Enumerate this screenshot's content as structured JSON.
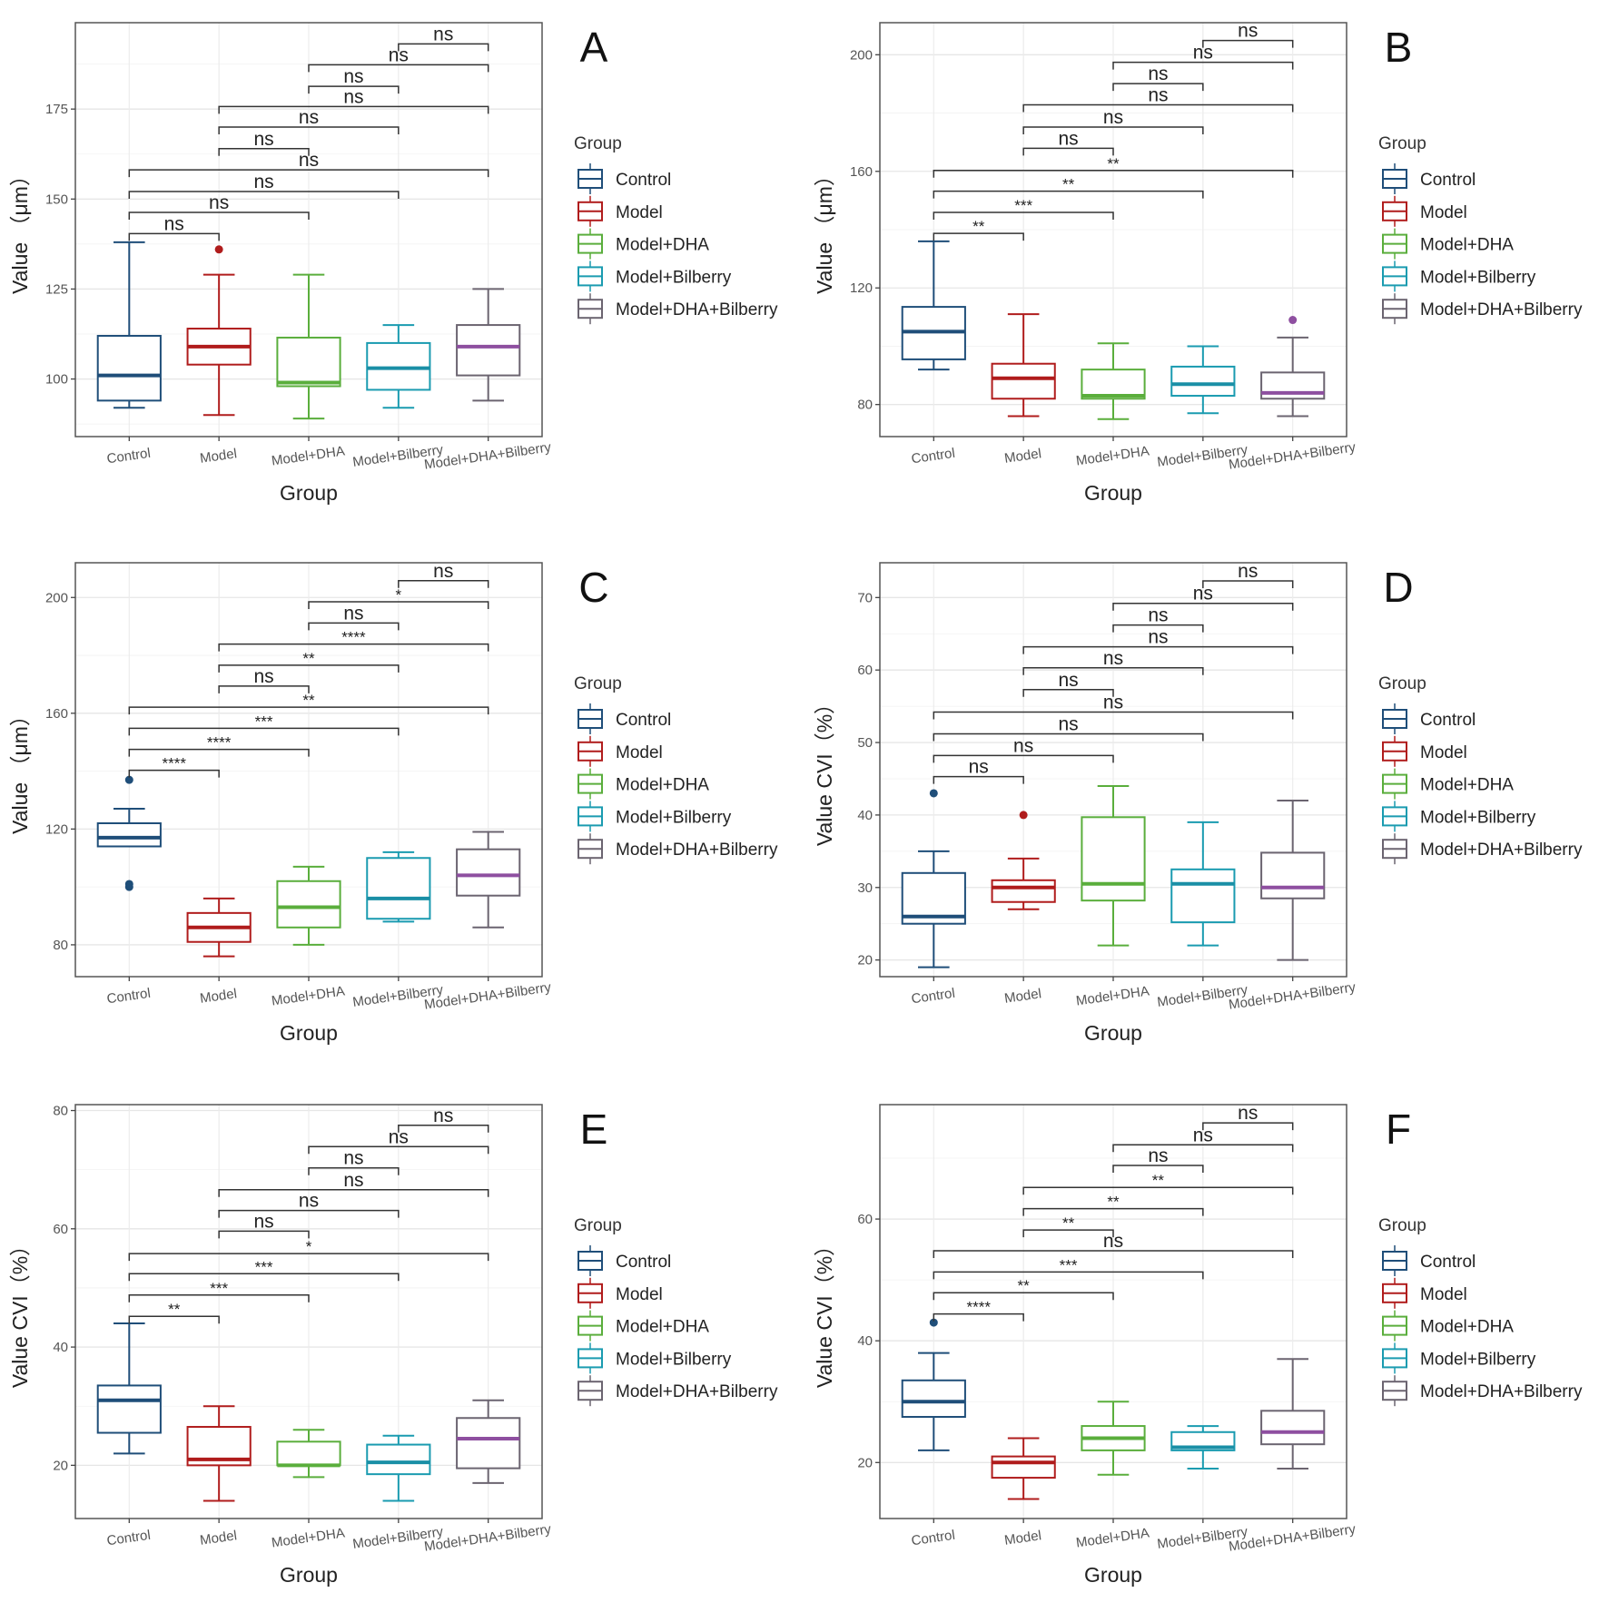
{
  "groups": [
    "Control",
    "Model",
    "Model+DHA",
    "Model+Bilberry",
    "Model+DHA+Bilberry"
  ],
  "colors": {
    "Control": "#1f4e79",
    "Model": "#b01c1c",
    "Model+DHA": "#5aae3c",
    "Model+Bilberry": "#1a9bb0",
    "Model+DHA+Bilberry": "#6b6470"
  },
  "median_colors": {
    "Control": "#1f4e79",
    "Model": "#b01c1c",
    "Model+DHA": "#5aae3c",
    "Model+Bilberry": "#1a8fa6",
    "Model+DHA+Bilberry": "#8e4fa0"
  },
  "legend_title": "Group",
  "comparisons": [
    [
      "Control",
      "Model"
    ],
    [
      "Control",
      "Model+DHA"
    ],
    [
      "Control",
      "Model+Bilberry"
    ],
    [
      "Control",
      "Model+DHA+Bilberry"
    ],
    [
      "Model",
      "Model+DHA"
    ],
    [
      "Model",
      "Model+Bilberry"
    ],
    [
      "Model",
      "Model+DHA+Bilberry"
    ],
    [
      "Model+DHA",
      "Model+Bilberry"
    ],
    [
      "Model+DHA",
      "Model+DHA+Bilberry"
    ],
    [
      "Model+Bilberry",
      "Model+DHA+Bilberry"
    ]
  ],
  "chart_data": [
    {
      "panel": "A",
      "type": "box",
      "xlabel": "Group",
      "ylabel": "Value （μm）",
      "ylim": [
        84,
        199
      ],
      "yticks": [
        100,
        125,
        150,
        175
      ],
      "boxes": [
        [
          92,
          94,
          101,
          112,
          138,
          []
        ],
        [
          90,
          104,
          109,
          114,
          129,
          [
            136
          ]
        ],
        [
          89,
          98,
          99,
          111.5,
          129,
          []
        ],
        [
          92,
          97,
          103,
          110,
          115,
          []
        ],
        [
          94,
          101,
          109,
          115,
          125,
          []
        ]
      ],
      "bracket_y": [
        140.4,
        146.3,
        152.1,
        158.1,
        164,
        170,
        175.7,
        181.3,
        187.3,
        193.1
      ],
      "labels": [
        "ns",
        "ns",
        "ns",
        "ns",
        "ns",
        "ns",
        "ns",
        "ns",
        "ns",
        "ns"
      ]
    },
    {
      "panel": "B",
      "type": "box",
      "xlabel": "Group",
      "ylabel": "Value （μm）",
      "ylim": [
        69,
        211
      ],
      "yticks": [
        80,
        120,
        160,
        200
      ],
      "boxes": [
        [
          92,
          95.5,
          105,
          113.5,
          136,
          []
        ],
        [
          76,
          82,
          89,
          94,
          111,
          []
        ],
        [
          75,
          82,
          83,
          92,
          101,
          []
        ],
        [
          77,
          83,
          87,
          93,
          100,
          []
        ],
        [
          76,
          82,
          84,
          91,
          103,
          [
            109
          ]
        ]
      ],
      "bracket_y": [
        138.7,
        145.9,
        153.2,
        160.3,
        167.9,
        175.2,
        182.8,
        190.1,
        197.4,
        204.9
      ],
      "labels": [
        "**",
        "***",
        "**",
        "**",
        "ns",
        "ns",
        "ns",
        "ns",
        "ns",
        "ns"
      ]
    },
    {
      "panel": "C",
      "type": "box",
      "xlabel": "Group",
      "ylabel": "Value （μm）",
      "ylim": [
        69,
        212
      ],
      "yticks": [
        80,
        120,
        160,
        200
      ],
      "boxes": [
        [
          114,
          114,
          117,
          122,
          127,
          [
            137,
            101,
            100
          ]
        ],
        [
          76,
          81,
          86,
          91,
          96,
          []
        ],
        [
          80,
          86,
          93,
          102,
          107,
          []
        ],
        [
          88,
          89,
          96,
          110,
          112,
          []
        ],
        [
          86,
          97,
          104,
          113,
          119,
          []
        ]
      ],
      "bracket_y": [
        140.3,
        147.5,
        154.8,
        162.1,
        169.4,
        176.6,
        183.9,
        191.2,
        198.5,
        205.8
      ],
      "labels": [
        "****",
        "****",
        "***",
        "**",
        "ns",
        "**",
        "****",
        "ns",
        "*",
        "ns"
      ]
    },
    {
      "panel": "D",
      "type": "box",
      "xlabel": "Group",
      "ylabel": "Value CVI（%）",
      "ylim": [
        17.7,
        74.8
      ],
      "yticks": [
        20,
        30,
        40,
        50,
        60,
        70
      ],
      "boxes": [
        [
          19,
          25,
          26,
          32,
          35,
          [
            43
          ]
        ],
        [
          27,
          28,
          30,
          31,
          34,
          [
            40
          ]
        ],
        [
          22,
          28.2,
          30.5,
          39.7,
          44,
          []
        ],
        [
          22,
          25.2,
          30.5,
          32.5,
          39,
          []
        ],
        [
          20,
          28.5,
          30,
          34.8,
          42,
          []
        ]
      ],
      "bracket_y": [
        45.3,
        48.2,
        51.2,
        54.2,
        57.3,
        60.3,
        63.2,
        66.2,
        69.2,
        72.3
      ],
      "labels": [
        "ns",
        "ns",
        "ns",
        "ns",
        "ns",
        "ns",
        "ns",
        "ns",
        "ns",
        "ns"
      ]
    },
    {
      "panel": "E",
      "type": "box",
      "xlabel": "Group",
      "ylabel": "Value CVI（%）",
      "ylim": [
        11,
        81
      ],
      "yticks": [
        20,
        40,
        60,
        80
      ],
      "boxes": [
        [
          22,
          25.5,
          31,
          33.5,
          44,
          []
        ],
        [
          14,
          20,
          21,
          26.5,
          30,
          []
        ],
        [
          18,
          20,
          20,
          24,
          26,
          []
        ],
        [
          14,
          18.5,
          20.5,
          23.5,
          25,
          []
        ],
        [
          17,
          19.5,
          24.5,
          28,
          31,
          []
        ]
      ],
      "bracket_y": [
        45.2,
        48.8,
        52.4,
        55.8,
        59.6,
        63.1,
        66.6,
        70.3,
        73.9,
        77.5
      ],
      "labels": [
        "**",
        "***",
        "***",
        "*",
        "ns",
        "ns",
        "ns",
        "ns",
        "ns",
        "ns"
      ]
    },
    {
      "panel": "F",
      "type": "box",
      "xlabel": "Group",
      "ylabel": "Value CVI（%）",
      "ylim": [
        10.8,
        78.8
      ],
      "yticks": [
        20,
        40,
        60
      ],
      "boxes": [
        [
          22,
          27.5,
          30,
          33.5,
          38,
          [
            43
          ]
        ],
        [
          14,
          17.5,
          20,
          21,
          24,
          []
        ],
        [
          18,
          22,
          24,
          26,
          30,
          []
        ],
        [
          19,
          22,
          22.5,
          25,
          26,
          []
        ],
        [
          19,
          23,
          25,
          28.5,
          37,
          []
        ]
      ],
      "bracket_y": [
        44.4,
        47.9,
        51.3,
        54.8,
        58.2,
        61.7,
        65.2,
        68.8,
        72.2,
        75.8
      ],
      "labels": [
        "****",
        "**",
        "***",
        "ns",
        "**",
        "**",
        "**",
        "ns",
        "ns",
        "ns"
      ]
    }
  ]
}
